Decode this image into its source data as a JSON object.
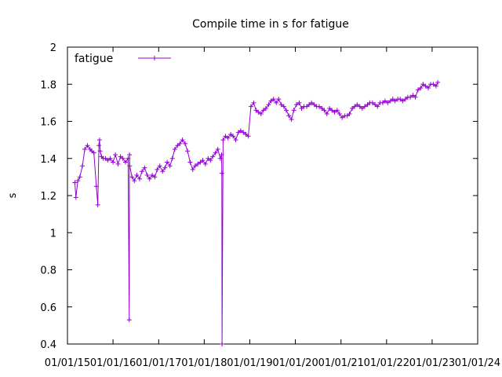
{
  "chart_data": {
    "type": "line",
    "title": "Compile time in s for fatigue",
    "xlabel": "",
    "ylabel": "s",
    "ylim": [
      0.4,
      2.0
    ],
    "xlim": [
      "2015-01-01",
      "2024-01-01"
    ],
    "y_ticks": [
      0.4,
      0.6,
      0.8,
      1.0,
      1.2,
      1.4,
      1.6,
      1.8,
      2.0
    ],
    "y_tick_labels": [
      "0.4",
      "0.6",
      "0.8",
      "1",
      "1.2",
      "1.4",
      "1.6",
      "1.8",
      "2"
    ],
    "x_ticks": [
      "2015-01-01",
      "2016-01-01",
      "2017-01-01",
      "2018-01-01",
      "2019-01-01",
      "2020-01-01",
      "2021-01-01",
      "2022-01-01",
      "2023-01-01",
      "2024-01-01"
    ],
    "x_tick_labels": [
      "01/01/15",
      "01/01/16",
      "01/01/17",
      "01/01/18",
      "01/01/19",
      "01/01/20",
      "01/01/21",
      "01/01/22",
      "01/01/23",
      "01/01/24"
    ],
    "grid": false,
    "legend": "top-left",
    "series": [
      {
        "name": "fatigue",
        "color": "#9400d3",
        "marker": "plus",
        "x": [
          "2015-03-01",
          "2015-03-10",
          "2015-03-25",
          "2015-04-10",
          "2015-05-01",
          "2015-05-20",
          "2015-06-10",
          "2015-07-01",
          "2015-07-15",
          "2015-08-01",
          "2015-08-20",
          "2015-09-01",
          "2015-09-10",
          "2015-09-15",
          "2015-09-20",
          "2015-10-01",
          "2015-10-15",
          "2015-11-01",
          "2015-11-20",
          "2015-12-10",
          "2016-01-01",
          "2016-01-20",
          "2016-02-10",
          "2016-03-01",
          "2016-03-20",
          "2016-04-10",
          "2016-05-01",
          "2016-05-10",
          "2016-05-12",
          "2016-05-14",
          "2016-06-01",
          "2016-06-20",
          "2016-07-10",
          "2016-08-01",
          "2016-08-20",
          "2016-09-10",
          "2016-10-01",
          "2016-10-20",
          "2016-11-10",
          "2016-12-01",
          "2016-12-20",
          "2017-01-10",
          "2017-02-01",
          "2017-02-20",
          "2017-03-10",
          "2017-04-01",
          "2017-04-20",
          "2017-05-10",
          "2017-06-01",
          "2017-06-20",
          "2017-07-10",
          "2017-08-01",
          "2017-08-20",
          "2017-09-10",
          "2017-10-01",
          "2017-10-20",
          "2017-11-10",
          "2017-12-01",
          "2017-12-20",
          "2018-01-10",
          "2018-02-01",
          "2018-02-20",
          "2018-03-10",
          "2018-04-01",
          "2018-04-20",
          "2018-05-10",
          "2018-05-20",
          "2018-05-22",
          "2018-05-24",
          "2018-06-01",
          "2018-06-20",
          "2018-07-10",
          "2018-08-01",
          "2018-08-20",
          "2018-09-10",
          "2018-10-01",
          "2018-10-20",
          "2018-11-10",
          "2018-12-01",
          "2018-12-20",
          "2019-01-10",
          "2019-02-01",
          "2019-02-20",
          "2019-03-10",
          "2019-04-01",
          "2019-04-20",
          "2019-05-10",
          "2019-06-01",
          "2019-06-20",
          "2019-07-10",
          "2019-08-01",
          "2019-08-20",
          "2019-09-10",
          "2019-10-01",
          "2019-10-20",
          "2019-11-10",
          "2019-12-01",
          "2019-12-20",
          "2020-01-10",
          "2020-02-01",
          "2020-02-20",
          "2020-03-10",
          "2020-04-01",
          "2020-04-20",
          "2020-05-10",
          "2020-06-01",
          "2020-06-20",
          "2020-07-10",
          "2020-08-01",
          "2020-08-20",
          "2020-09-10",
          "2020-10-01",
          "2020-10-20",
          "2020-11-10",
          "2020-12-01",
          "2020-12-20",
          "2021-01-10",
          "2021-02-01",
          "2021-02-20",
          "2021-03-10",
          "2021-04-01",
          "2021-04-20",
          "2021-05-10",
          "2021-06-01",
          "2021-06-20",
          "2021-07-10",
          "2021-08-01",
          "2021-08-20",
          "2021-09-10",
          "2021-10-01",
          "2021-10-20",
          "2021-11-10",
          "2021-12-01",
          "2021-12-20",
          "2022-01-10",
          "2022-02-01",
          "2022-02-20",
          "2022-03-10",
          "2022-04-01",
          "2022-04-20",
          "2022-05-10",
          "2022-06-01",
          "2022-06-20",
          "2022-07-10",
          "2022-08-01",
          "2022-08-20",
          "2022-09-10",
          "2022-10-01",
          "2022-10-20",
          "2022-11-10",
          "2022-12-01",
          "2022-12-20",
          "2023-01-10",
          "2023-02-01",
          "2023-02-15"
        ],
        "values": [
          1.27,
          1.19,
          1.28,
          1.3,
          1.36,
          1.45,
          1.47,
          1.45,
          1.44,
          1.43,
          1.25,
          1.15,
          1.47,
          1.5,
          1.44,
          1.41,
          1.4,
          1.4,
          1.39,
          1.4,
          1.38,
          1.42,
          1.37,
          1.41,
          1.4,
          1.38,
          1.4,
          0.53,
          1.42,
          1.36,
          1.3,
          1.28,
          1.31,
          1.29,
          1.33,
          1.35,
          1.31,
          1.29,
          1.31,
          1.3,
          1.34,
          1.36,
          1.33,
          1.35,
          1.38,
          1.36,
          1.4,
          1.45,
          1.47,
          1.48,
          1.5,
          1.48,
          1.44,
          1.38,
          1.34,
          1.36,
          1.37,
          1.38,
          1.39,
          1.37,
          1.4,
          1.39,
          1.41,
          1.43,
          1.45,
          1.4,
          1.42,
          1.32,
          0.4,
          1.5,
          1.52,
          1.51,
          1.53,
          1.52,
          1.5,
          1.54,
          1.55,
          1.54,
          1.53,
          1.52,
          1.68,
          1.7,
          1.66,
          1.65,
          1.64,
          1.66,
          1.67,
          1.69,
          1.71,
          1.72,
          1.7,
          1.72,
          1.69,
          1.68,
          1.66,
          1.63,
          1.61,
          1.66,
          1.69,
          1.7,
          1.67,
          1.68,
          1.68,
          1.69,
          1.7,
          1.69,
          1.68,
          1.68,
          1.67,
          1.66,
          1.64,
          1.67,
          1.66,
          1.65,
          1.66,
          1.64,
          1.62,
          1.63,
          1.63,
          1.64,
          1.67,
          1.68,
          1.69,
          1.68,
          1.67,
          1.68,
          1.69,
          1.7,
          1.7,
          1.69,
          1.68,
          1.7,
          1.7,
          1.71,
          1.7,
          1.71,
          1.72,
          1.71,
          1.72,
          1.72,
          1.71,
          1.72,
          1.73,
          1.73,
          1.74,
          1.73,
          1.77,
          1.78,
          1.8,
          1.79,
          1.78,
          1.8,
          1.8,
          1.79,
          1.81
        ]
      }
    ]
  }
}
